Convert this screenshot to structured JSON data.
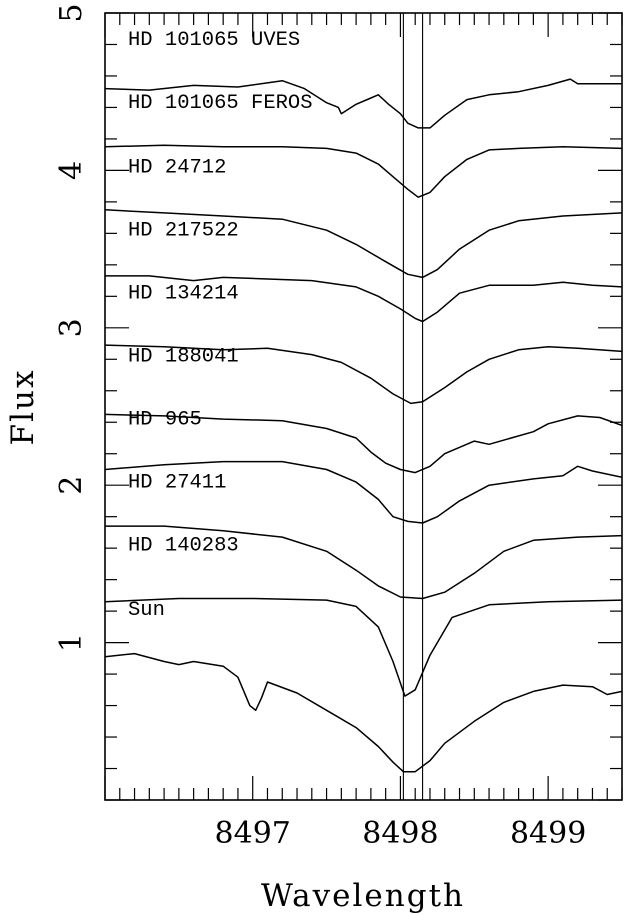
{
  "chart_data": {
    "type": "line",
    "xlabel": "Wavelength",
    "ylabel": "Flux",
    "xlim": [
      8496.0,
      8499.5
    ],
    "ylim": [
      0.0,
      5.0
    ],
    "x_ticks": [
      8497,
      8498,
      8499
    ],
    "y_ticks": [
      1,
      2,
      3,
      4,
      5
    ],
    "reference_lines_x": [
      8498.02,
      8498.15
    ],
    "grid": false,
    "series": [
      {
        "name": "HD 101065 UVES",
        "points": [
          [
            8496.0,
            4.52
          ],
          [
            8496.3,
            4.51
          ],
          [
            8496.6,
            4.54
          ],
          [
            8496.9,
            4.53
          ],
          [
            8497.2,
            4.57
          ],
          [
            8497.35,
            4.52
          ],
          [
            8497.5,
            4.43
          ],
          [
            8497.58,
            4.4
          ],
          [
            8497.6,
            4.36
          ],
          [
            8497.7,
            4.42
          ],
          [
            8497.8,
            4.46
          ],
          [
            8497.85,
            4.48
          ],
          [
            8497.92,
            4.42
          ],
          [
            8498.0,
            4.36
          ],
          [
            8498.05,
            4.3
          ],
          [
            8498.12,
            4.27
          ],
          [
            8498.2,
            4.27
          ],
          [
            8498.3,
            4.35
          ],
          [
            8498.45,
            4.45
          ],
          [
            8498.6,
            4.48
          ],
          [
            8498.8,
            4.5
          ],
          [
            8499.0,
            4.54
          ],
          [
            8499.15,
            4.58
          ],
          [
            8499.2,
            4.55
          ],
          [
            8499.35,
            4.55
          ],
          [
            8499.5,
            4.55
          ]
        ]
      },
      {
        "name": "HD 101065 FEROS",
        "points": [
          [
            8496.0,
            4.15
          ],
          [
            8496.4,
            4.16
          ],
          [
            8496.8,
            4.15
          ],
          [
            8497.2,
            4.15
          ],
          [
            8497.5,
            4.14
          ],
          [
            8497.7,
            4.11
          ],
          [
            8497.85,
            4.04
          ],
          [
            8497.95,
            3.96
          ],
          [
            8498.05,
            3.88
          ],
          [
            8498.12,
            3.83
          ],
          [
            8498.2,
            3.86
          ],
          [
            8498.3,
            3.96
          ],
          [
            8498.45,
            4.07
          ],
          [
            8498.6,
            4.13
          ],
          [
            8498.8,
            4.14
          ],
          [
            8499.1,
            4.15
          ],
          [
            8499.5,
            4.14
          ]
        ]
      },
      {
        "name": "HD 24712",
        "points": [
          [
            8496.0,
            3.75
          ],
          [
            8496.4,
            3.73
          ],
          [
            8496.8,
            3.71
          ],
          [
            8497.2,
            3.69
          ],
          [
            8497.5,
            3.62
          ],
          [
            8497.7,
            3.53
          ],
          [
            8497.9,
            3.42
          ],
          [
            8498.05,
            3.34
          ],
          [
            8498.15,
            3.32
          ],
          [
            8498.25,
            3.37
          ],
          [
            8498.4,
            3.5
          ],
          [
            8498.6,
            3.62
          ],
          [
            8498.8,
            3.68
          ],
          [
            8499.1,
            3.71
          ],
          [
            8499.5,
            3.73
          ]
        ]
      },
      {
        "name": "HD 217522",
        "points": [
          [
            8496.0,
            3.33
          ],
          [
            8496.3,
            3.33
          ],
          [
            8496.6,
            3.3
          ],
          [
            8496.8,
            3.32
          ],
          [
            8497.1,
            3.31
          ],
          [
            8497.4,
            3.3
          ],
          [
            8497.7,
            3.26
          ],
          [
            8497.85,
            3.2
          ],
          [
            8498.0,
            3.12
          ],
          [
            8498.1,
            3.06
          ],
          [
            8498.15,
            3.04
          ],
          [
            8498.25,
            3.1
          ],
          [
            8498.4,
            3.22
          ],
          [
            8498.6,
            3.27
          ],
          [
            8498.9,
            3.27
          ],
          [
            8499.1,
            3.29
          ],
          [
            8499.3,
            3.27
          ],
          [
            8499.5,
            3.26
          ]
        ]
      },
      {
        "name": "HD 134214",
        "points": [
          [
            8496.0,
            2.89
          ],
          [
            8496.4,
            2.88
          ],
          [
            8496.8,
            2.86
          ],
          [
            8497.1,
            2.87
          ],
          [
            8497.4,
            2.83
          ],
          [
            8497.6,
            2.78
          ],
          [
            8497.8,
            2.68
          ],
          [
            8497.95,
            2.58
          ],
          [
            8498.07,
            2.52
          ],
          [
            8498.15,
            2.53
          ],
          [
            8498.3,
            2.62
          ],
          [
            8498.45,
            2.72
          ],
          [
            8498.6,
            2.8
          ],
          [
            8498.8,
            2.86
          ],
          [
            8499.0,
            2.88
          ],
          [
            8499.2,
            2.87
          ],
          [
            8499.5,
            2.85
          ]
        ]
      },
      {
        "name": "HD 188041",
        "points": [
          [
            8496.0,
            2.45
          ],
          [
            8496.4,
            2.44
          ],
          [
            8496.8,
            2.42
          ],
          [
            8497.2,
            2.41
          ],
          [
            8497.5,
            2.36
          ],
          [
            8497.7,
            2.3
          ],
          [
            8497.8,
            2.21
          ],
          [
            8497.9,
            2.14
          ],
          [
            8498.0,
            2.1
          ],
          [
            8498.1,
            2.08
          ],
          [
            8498.2,
            2.12
          ],
          [
            8498.3,
            2.2
          ],
          [
            8498.5,
            2.28
          ],
          [
            8498.6,
            2.26
          ],
          [
            8498.75,
            2.3
          ],
          [
            8498.9,
            2.34
          ],
          [
            8499.0,
            2.39
          ],
          [
            8499.2,
            2.44
          ],
          [
            8499.35,
            2.43
          ],
          [
            8499.5,
            2.38
          ]
        ]
      },
      {
        "name": "HD 965",
        "points": [
          [
            8496.0,
            2.1
          ],
          [
            8496.4,
            2.13
          ],
          [
            8496.8,
            2.15
          ],
          [
            8497.2,
            2.15
          ],
          [
            8497.5,
            2.1
          ],
          [
            8497.7,
            2.02
          ],
          [
            8497.85,
            1.91
          ],
          [
            8497.95,
            1.8
          ],
          [
            8498.05,
            1.77
          ],
          [
            8498.15,
            1.76
          ],
          [
            8498.25,
            1.8
          ],
          [
            8498.4,
            1.9
          ],
          [
            8498.6,
            2.0
          ],
          [
            8498.9,
            2.04
          ],
          [
            8499.1,
            2.06
          ],
          [
            8499.2,
            2.12
          ],
          [
            8499.3,
            2.09
          ],
          [
            8499.5,
            2.05
          ]
        ]
      },
      {
        "name": "HD 27411",
        "points": [
          [
            8496.0,
            1.74
          ],
          [
            8496.4,
            1.74
          ],
          [
            8496.8,
            1.71
          ],
          [
            8497.2,
            1.67
          ],
          [
            8497.5,
            1.58
          ],
          [
            8497.7,
            1.46
          ],
          [
            8497.85,
            1.36
          ],
          [
            8498.0,
            1.29
          ],
          [
            8498.15,
            1.28
          ],
          [
            8498.3,
            1.32
          ],
          [
            8498.5,
            1.44
          ],
          [
            8498.7,
            1.58
          ],
          [
            8498.9,
            1.65
          ],
          [
            8499.2,
            1.67
          ],
          [
            8499.5,
            1.68
          ]
        ]
      },
      {
        "name": "HD 140283",
        "points": [
          [
            8496.0,
            1.26
          ],
          [
            8496.5,
            1.28
          ],
          [
            8497.0,
            1.28
          ],
          [
            8497.5,
            1.27
          ],
          [
            8497.7,
            1.23
          ],
          [
            8497.85,
            1.1
          ],
          [
            8497.95,
            0.88
          ],
          [
            8498.03,
            0.66
          ],
          [
            8498.1,
            0.7
          ],
          [
            8498.2,
            0.92
          ],
          [
            8498.35,
            1.16
          ],
          [
            8498.6,
            1.24
          ],
          [
            8499.0,
            1.26
          ],
          [
            8499.5,
            1.27
          ]
        ]
      },
      {
        "name": "Sun",
        "points": [
          [
            8496.0,
            0.91
          ],
          [
            8496.2,
            0.93
          ],
          [
            8496.4,
            0.88
          ],
          [
            8496.5,
            0.86
          ],
          [
            8496.6,
            0.88
          ],
          [
            8496.8,
            0.85
          ],
          [
            8496.9,
            0.78
          ],
          [
            8496.98,
            0.6
          ],
          [
            8497.02,
            0.57
          ],
          [
            8497.06,
            0.65
          ],
          [
            8497.1,
            0.75
          ],
          [
            8497.3,
            0.68
          ],
          [
            8497.5,
            0.57
          ],
          [
            8497.7,
            0.46
          ],
          [
            8497.85,
            0.34
          ],
          [
            8497.95,
            0.24
          ],
          [
            8498.02,
            0.18
          ],
          [
            8498.1,
            0.18
          ],
          [
            8498.2,
            0.25
          ],
          [
            8498.3,
            0.36
          ],
          [
            8498.5,
            0.5
          ],
          [
            8498.7,
            0.62
          ],
          [
            8498.9,
            0.69
          ],
          [
            8499.1,
            0.73
          ],
          [
            8499.3,
            0.72
          ],
          [
            8499.4,
            0.67
          ],
          [
            8499.5,
            0.69
          ]
        ]
      }
    ],
    "label_texts": [
      "HD 101065 UVES",
      "HD 101065 FEROS",
      "HD 24712",
      "HD 217522",
      "HD 134214",
      "HD 188041",
      "HD 965",
      "HD 27411",
      "HD 140283",
      "Sun"
    ],
    "label_y": [
      4.84,
      4.44,
      4.03,
      3.63,
      3.23,
      2.83,
      2.43,
      2.03,
      1.63,
      1.22
    ]
  }
}
